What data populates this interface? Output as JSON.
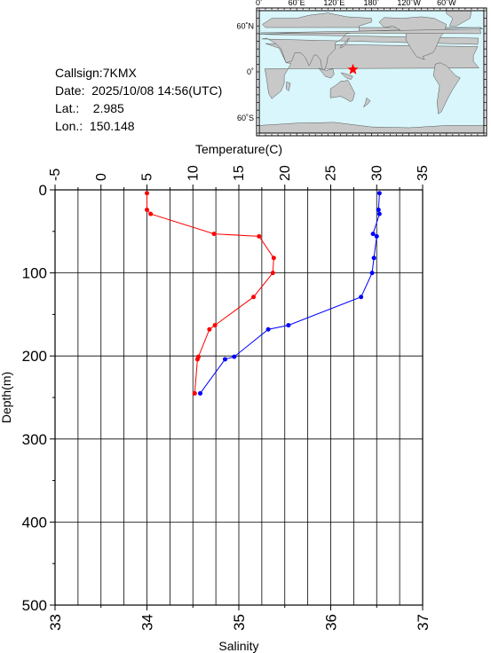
{
  "station": {
    "callsign": "Callsign:7KMX",
    "date": "Date:  2025/10/08 14:56(UTC)",
    "lat": "Lat.:    2.985",
    "lon": "Lon.:  150.148"
  },
  "map": {
    "top_labels": [
      "0˚",
      "60˚E",
      "120˚E",
      "180˚",
      "120˚W",
      "60˚W"
    ],
    "left_labels": [
      "60˚N",
      "0˚",
      "60˚S"
    ],
    "ocean_color": "#d8f6fb",
    "land_color": "#c8c8c8",
    "marker_color": "#ff0000",
    "marker": {
      "lon": 150.148,
      "lat": 2.985
    }
  },
  "chart_data": {
    "type": "line",
    "ylabel": "Depth(m)",
    "top_axis_label": "Temperature(C)",
    "bottom_axis_label": "Salinity",
    "ylim": [
      0,
      500
    ],
    "y_reversed": true,
    "temperature_lim": [
      -5,
      35
    ],
    "salinity_lim": [
      33,
      37
    ],
    "y_ticks": [
      "0",
      "100",
      "200",
      "300",
      "400",
      "500"
    ],
    "temperature_ticks": [
      "-5",
      "0",
      "5",
      "10",
      "15",
      "20",
      "25",
      "30",
      "35"
    ],
    "salinity_ticks": [
      "33",
      "34",
      "35",
      "36",
      "37"
    ],
    "grid": true,
    "series": [
      {
        "color": "#ff0000",
        "axis": "temperature",
        "points": [
          [
            5.0,
            4
          ],
          [
            5.0,
            24
          ],
          [
            5.4,
            29
          ],
          [
            12.3,
            53
          ],
          [
            17.2,
            56
          ],
          [
            18.8,
            82
          ],
          [
            18.7,
            100
          ],
          [
            16.6,
            129
          ],
          [
            12.4,
            163
          ],
          [
            11.8,
            168
          ],
          [
            10.6,
            201
          ],
          [
            10.5,
            204
          ],
          [
            10.2,
            245
          ]
        ]
      },
      {
        "color": "#0000ff",
        "axis": "salinity",
        "points": [
          [
            36.53,
            4
          ],
          [
            36.52,
            24
          ],
          [
            36.53,
            29
          ],
          [
            36.46,
            53
          ],
          [
            36.5,
            56
          ],
          [
            36.47,
            82
          ],
          [
            36.45,
            100
          ],
          [
            36.33,
            129
          ],
          [
            35.54,
            163
          ],
          [
            35.32,
            168
          ],
          [
            34.95,
            201
          ],
          [
            34.85,
            204
          ],
          [
            34.58,
            245
          ]
        ]
      }
    ]
  }
}
